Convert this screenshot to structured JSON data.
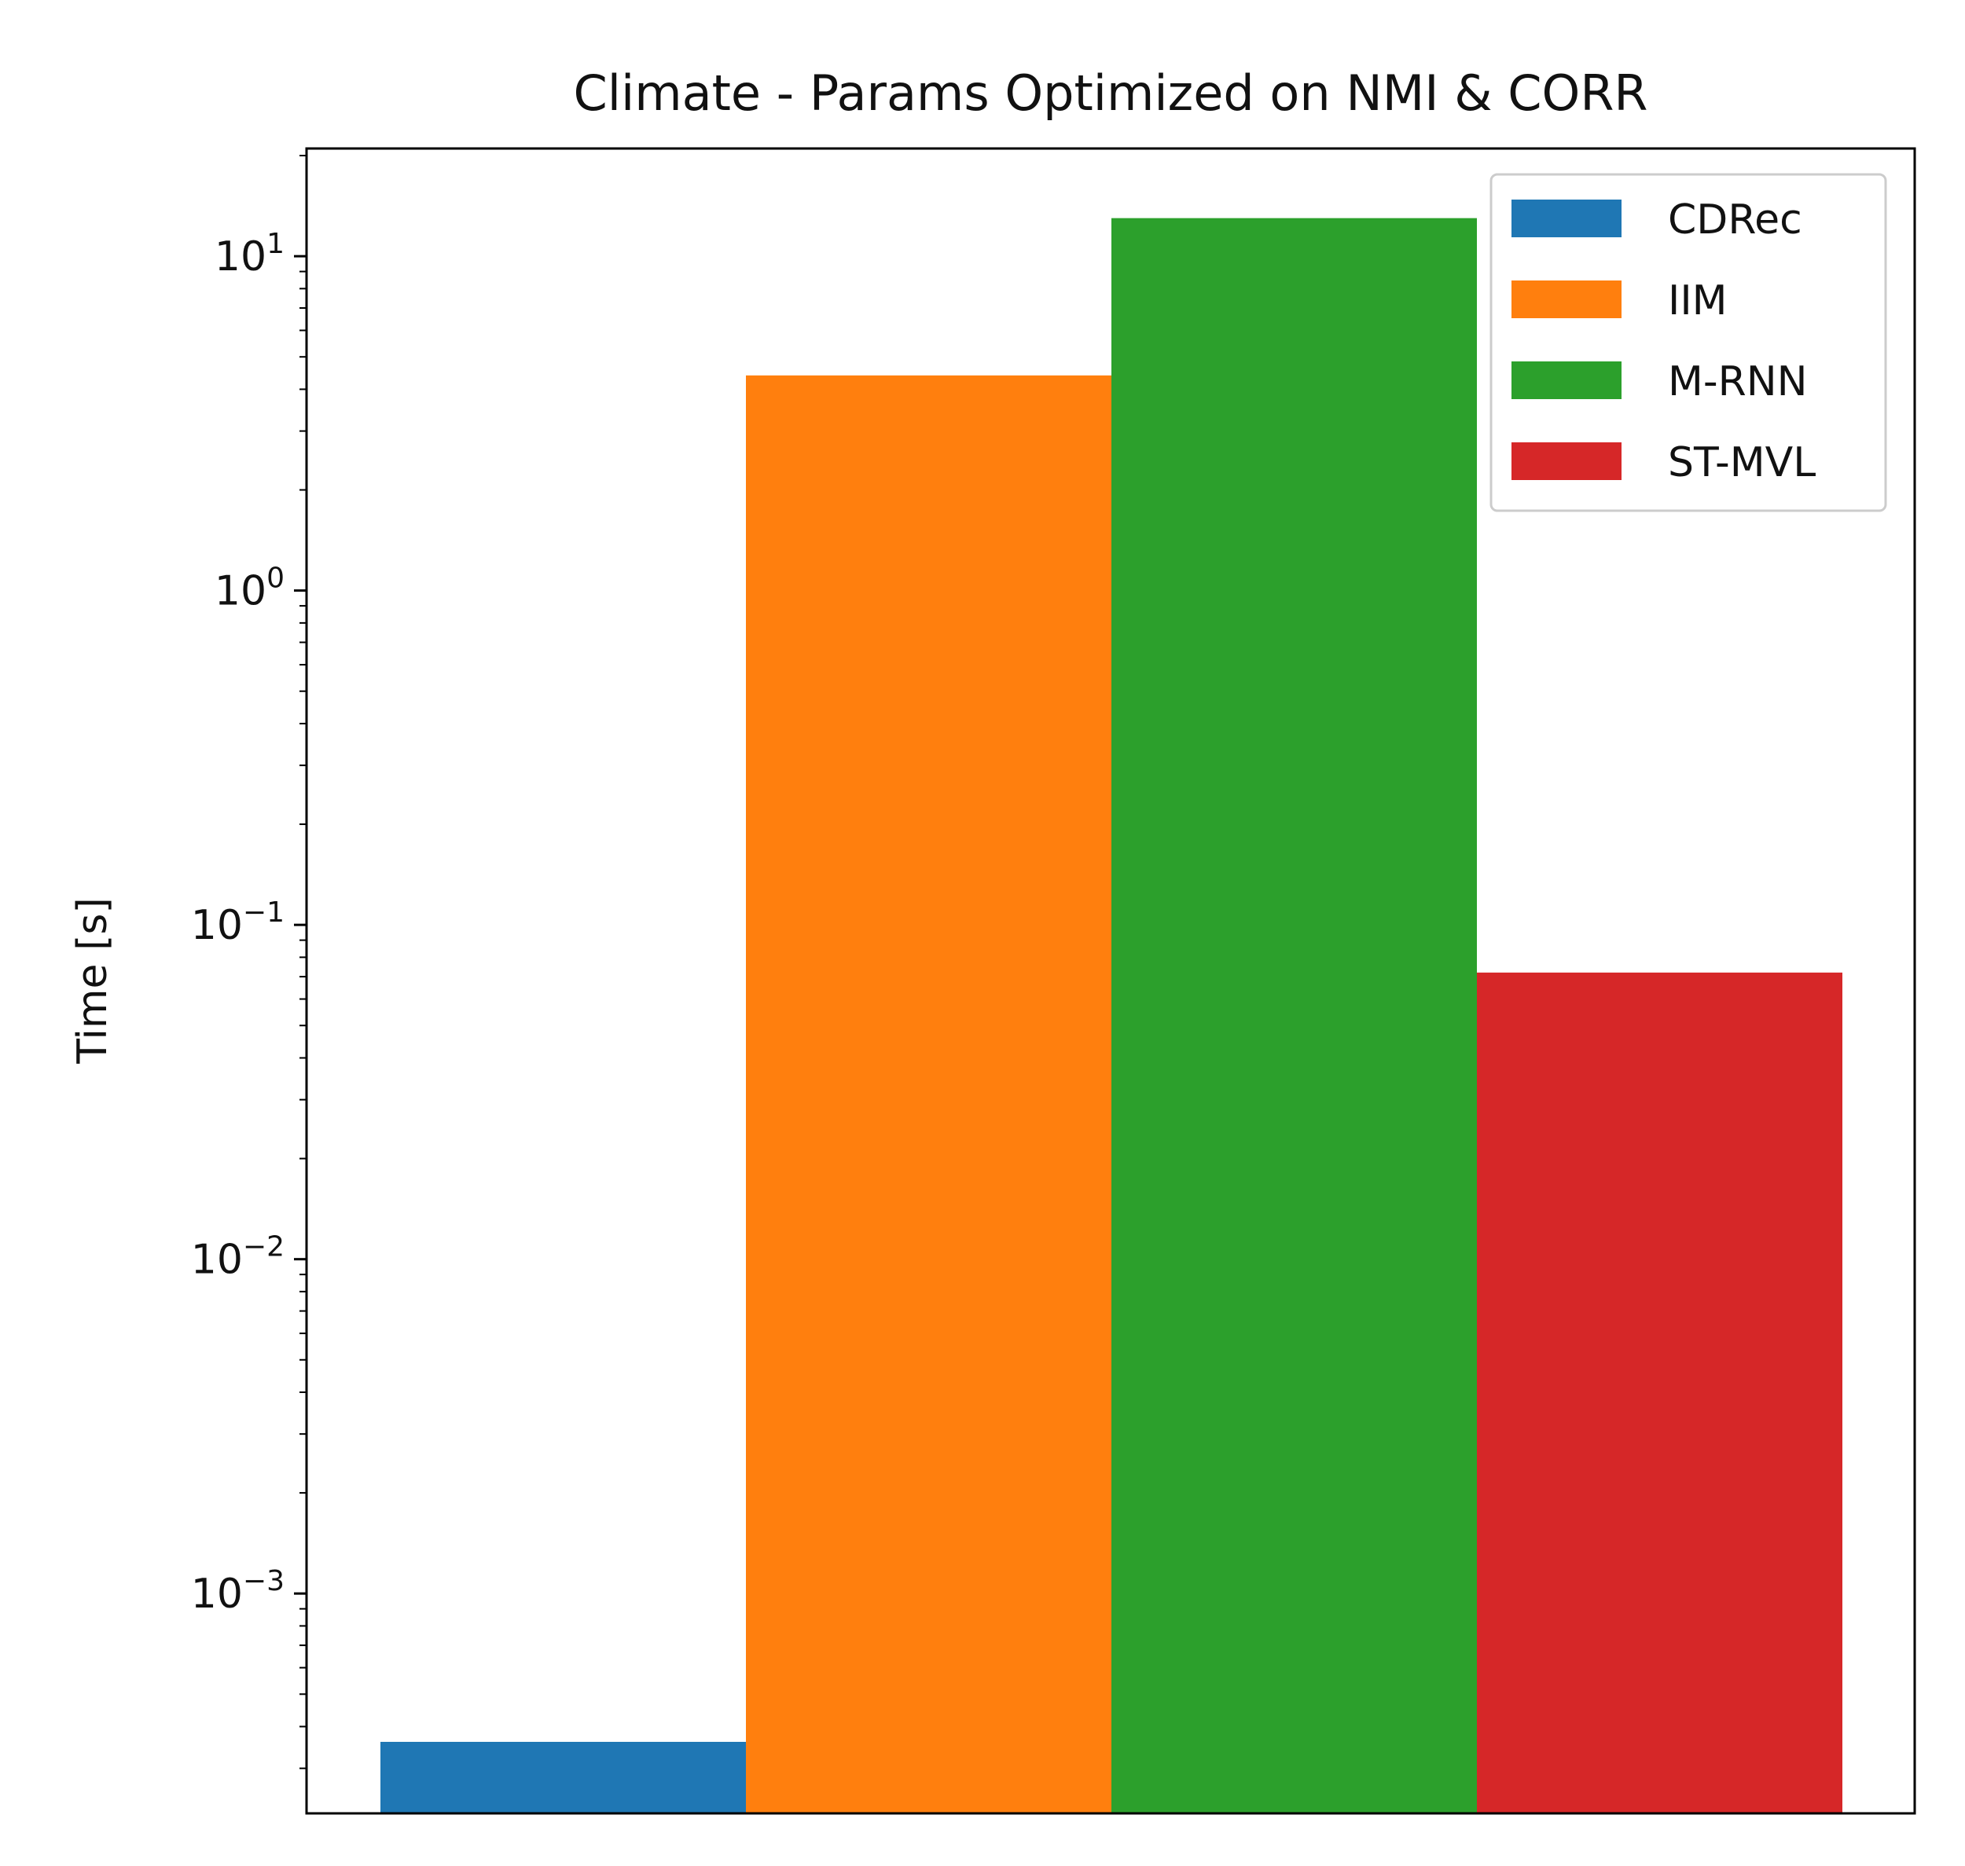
{
  "chart_data": {
    "type": "bar",
    "title": "Climate - Params Optimized on NMI & CORR",
    "xlabel": "",
    "ylabel": "Time [s]",
    "yscale": "log",
    "ylim": [
      0.00022,
      21
    ],
    "yticks": [
      {
        "value": 0.001,
        "base": "10",
        "exp": "−3"
      },
      {
        "value": 0.01,
        "base": "10",
        "exp": "−2"
      },
      {
        "value": 0.1,
        "base": "10",
        "exp": "−1"
      },
      {
        "value": 1,
        "base": "10",
        "exp": "0"
      },
      {
        "value": 10,
        "base": "10",
        "exp": "1"
      }
    ],
    "xticks": [],
    "grid": false,
    "legend_position": "top-right",
    "series": [
      {
        "name": "CDRec",
        "value": 0.00036,
        "color": "#1f77b4"
      },
      {
        "name": "IIM",
        "value": 4.4,
        "color": "#ff7f0e"
      },
      {
        "name": "M-RNN",
        "value": 13,
        "color": "#2ca02c"
      },
      {
        "name": "ST-MVL",
        "value": 0.072,
        "color": "#d62728"
      }
    ]
  }
}
